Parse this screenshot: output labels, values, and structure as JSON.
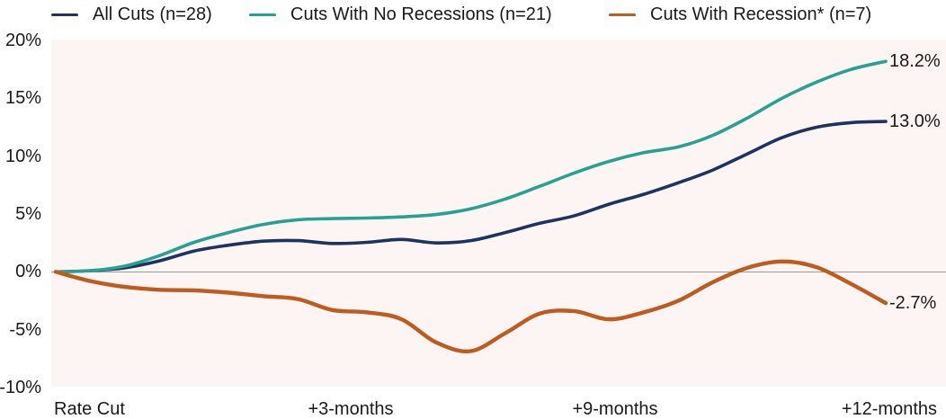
{
  "chart_data": {
    "type": "line",
    "title": "",
    "xlabel": "",
    "ylabel": "",
    "x_unit": "months after rate cut",
    "x_range_months": [
      0,
      12
    ],
    "ylim": [
      -10,
      20
    ],
    "y_unit": "%",
    "grid": false,
    "zero_baseline": true,
    "legend_position": "top",
    "x_tick_labels": [
      "Rate Cut",
      "+3-months",
      "+9-months",
      "+12-months"
    ],
    "y_ticks": [
      {
        "label": "20%",
        "value": 20
      },
      {
        "label": "15%",
        "value": 15
      },
      {
        "label": "10%",
        "value": 10
      },
      {
        "label": "5%",
        "value": 5
      },
      {
        "label": "0%",
        "value": 0
      },
      {
        "label": "-5%",
        "value": -5
      },
      {
        "label": "-10%",
        "value": -10
      }
    ],
    "months": [
      0,
      0.5,
      1,
      1.5,
      2,
      2.5,
      3,
      3.5,
      4,
      4.5,
      5,
      5.5,
      6,
      6.5,
      7,
      7.5,
      8,
      8.5,
      9,
      9.5,
      10,
      10.5,
      11,
      11.5,
      12
    ],
    "series": [
      {
        "name": "All Cuts (n=28)",
        "color": "#1d3461",
        "stroke_width": 3.6,
        "end_label": "13.0%",
        "end_value": 13.0,
        "values": [
          0,
          0.1,
          0.35,
          0.95,
          1.8,
          2.3,
          2.65,
          2.7,
          2.45,
          2.55,
          2.8,
          2.5,
          2.7,
          3.4,
          4.2,
          4.85,
          5.85,
          6.7,
          7.7,
          8.8,
          10.2,
          11.6,
          12.5,
          12.9,
          13.0
        ]
      },
      {
        "name": "Cuts With No Recessions (n=21)",
        "color": "#27a292",
        "stroke_width": 3.6,
        "end_label": "18.2%",
        "end_value": 18.2,
        "values": [
          0,
          0.1,
          0.5,
          1.4,
          2.55,
          3.4,
          4.1,
          4.5,
          4.6,
          4.65,
          4.75,
          4.95,
          5.45,
          6.3,
          7.4,
          8.55,
          9.55,
          10.3,
          10.8,
          11.8,
          13.3,
          15.0,
          16.4,
          17.5,
          18.2
        ]
      },
      {
        "name": "Cuts With Recession* (n=7)",
        "color": "#c05b1e",
        "stroke_width": 4.4,
        "end_label": "-2.7%",
        "end_value": -2.7,
        "values": [
          0,
          -0.8,
          -1.3,
          -1.55,
          -1.6,
          -1.8,
          -2.1,
          -2.35,
          -3.3,
          -3.5,
          -4.1,
          -6.1,
          -6.85,
          -5.3,
          -3.6,
          -3.4,
          -4.1,
          -3.5,
          -2.5,
          -0.9,
          0.35,
          0.9,
          0.4,
          -1.05,
          -2.7
        ]
      }
    ],
    "colors": {
      "plot_background": "#fdf5f3",
      "page_background": "#ffffff",
      "zero_line": "#9a9a9a",
      "text": "#1a1a1a"
    }
  }
}
